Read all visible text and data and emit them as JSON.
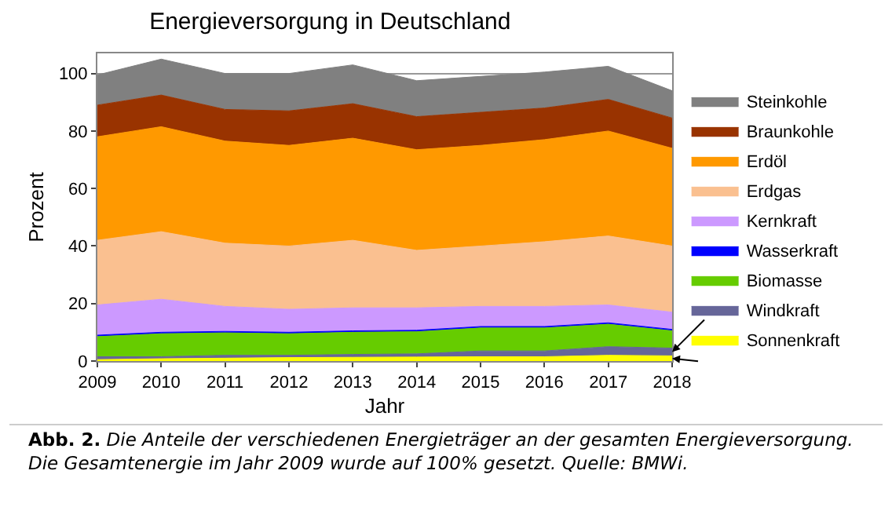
{
  "chart_data": {
    "type": "area",
    "stacked": true,
    "title": "Energieversorgung in Deutschland",
    "xlabel": "Jahr",
    "ylabel": "Prozent",
    "x": [
      2009,
      2010,
      2011,
      2012,
      2013,
      2014,
      2015,
      2016,
      2017,
      2018
    ],
    "xlim": [
      2009,
      2018
    ],
    "xticks": [
      2009,
      2010,
      2011,
      2012,
      2013,
      2014,
      2015,
      2016,
      2017,
      2018
    ],
    "ylim": [
      0,
      107
    ],
    "yticks": [
      0,
      20,
      40,
      60,
      80,
      100
    ],
    "grid": "y",
    "legend": "right",
    "series": [
      {
        "name": "Sonnenkraft",
        "color": "#ffff00",
        "values": [
          0.5,
          0.8,
          1,
          1.2,
          1.3,
          1.4,
          1.5,
          1.5,
          2,
          1.8
        ]
      },
      {
        "name": "Windkraft",
        "color": "#666699",
        "values": [
          1,
          0.7,
          1,
          0.8,
          1,
          1.1,
          2,
          2,
          3,
          2.7
        ]
      },
      {
        "name": "Biomasse",
        "color": "#66cc00",
        "values": [
          7,
          8,
          7.8,
          7.5,
          7.7,
          7.7,
          8,
          8,
          7.8,
          6
        ]
      },
      {
        "name": "Wasserkraft",
        "color": "#0000ff",
        "values": [
          0.5,
          0.5,
          0.5,
          0.5,
          0.5,
          0.5,
          0.5,
          0.5,
          0.5,
          0.5
        ]
      },
      {
        "name": "Kernkraft",
        "color": "#cc99ff",
        "values": [
          10.5,
          11.5,
          8.7,
          8,
          8,
          7.8,
          7,
          7,
          6.2,
          6
        ]
      },
      {
        "name": "Erdgas",
        "color": "#fac090",
        "values": [
          22.5,
          23.5,
          22,
          22,
          23.5,
          20,
          21,
          22.5,
          24,
          23
        ]
      },
      {
        "name": "Erdöl",
        "color": "#ff9900",
        "values": [
          36,
          36.5,
          35.5,
          35,
          35.5,
          35,
          35,
          35.5,
          36.5,
          34
        ]
      },
      {
        "name": "Braunkohle",
        "color": "#993300",
        "values": [
          11,
          11,
          11,
          12,
          12,
          11.5,
          11.5,
          11,
          11,
          10.5
        ]
      },
      {
        "name": "Steinkohle",
        "color": "#808080",
        "values": [
          10.5,
          12.5,
          12.5,
          13,
          13.5,
          12.5,
          12.5,
          12.5,
          11.5,
          9.5
        ]
      }
    ],
    "annotations": [
      "Abb. 2.",
      "Die Anteile der verschiedenen Energieträger an der gesamten Energieversorgung. Die Gesamtenergie im Jahr 2009 wurde auf 100% gesetzt. Quelle: BMWi."
    ]
  }
}
